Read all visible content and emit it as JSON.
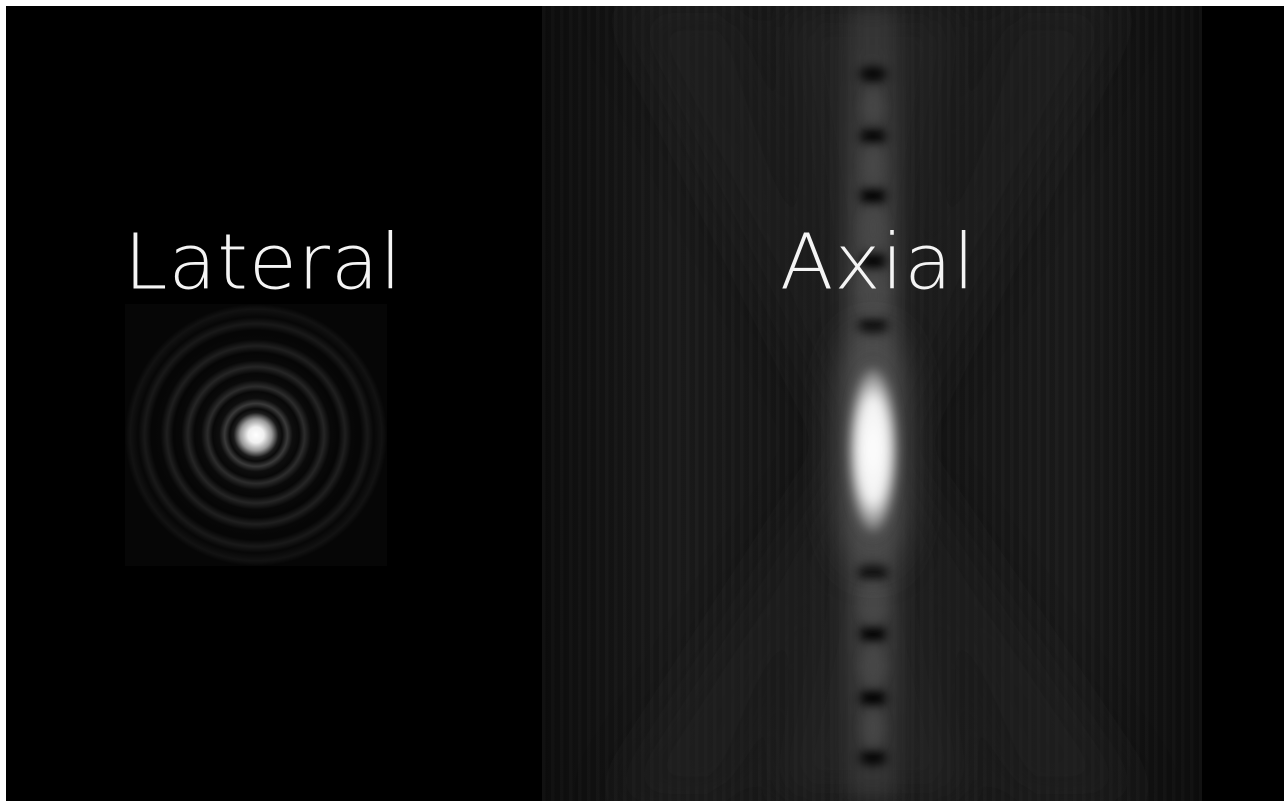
{
  "labels": {
    "lateral": "Lateral",
    "axial": "Axial"
  },
  "colors": {
    "background": "#000000",
    "label_text": "#f4f4f4",
    "psf_peak": "#ffffff"
  }
}
